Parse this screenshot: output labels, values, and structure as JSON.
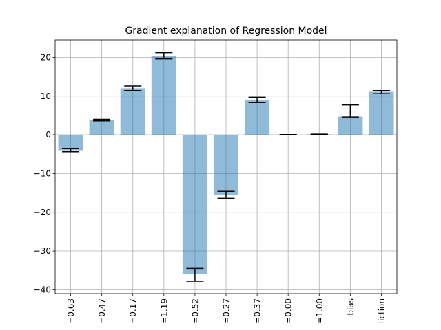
{
  "chart_data": {
    "type": "bar",
    "title": "Gradient explanation of Regression Model",
    "xlabel": "",
    "ylabel": "",
    "categories": [
      "=0.63",
      "=0.47",
      "=0.17",
      "=1.19",
      "=0.52",
      "=0.27",
      "=0.37",
      "=0.00",
      "=1.00",
      "bias",
      "liction"
    ],
    "values": [
      -4.0,
      3.8,
      12.0,
      20.4,
      -36.0,
      -15.5,
      9.0,
      0.0,
      0.1,
      4.7,
      11.1
    ],
    "error_low": [
      -4.4,
      3.6,
      11.4,
      19.6,
      -37.8,
      -16.4,
      8.3,
      -0.05,
      0.05,
      4.6,
      10.6
    ],
    "error_high": [
      -3.6,
      4.0,
      12.6,
      21.2,
      -34.5,
      -14.6,
      9.7,
      0.05,
      0.15,
      7.7,
      11.4
    ],
    "ylim": [
      -41,
      24.5
    ],
    "yticks": [
      -40,
      -30,
      -20,
      -10,
      0,
      10,
      20
    ],
    "ytick_labels": [
      "−40",
      "−30",
      "−20",
      "−10",
      "0",
      "10",
      "20"
    ],
    "grid": true,
    "colors": {
      "bar": "#1f77b4",
      "bar_opacity": 0.5,
      "grid": "#b0b0b0",
      "error": "#000000"
    }
  }
}
